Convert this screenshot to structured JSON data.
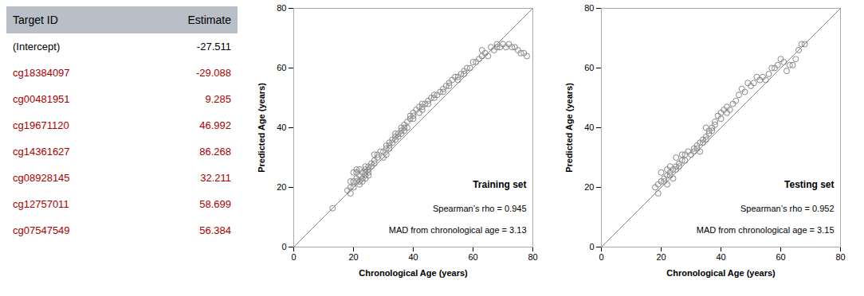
{
  "chart_data": [
    {
      "type": "table",
      "headers": [
        "Target ID",
        "Estimate"
      ],
      "rows": [
        [
          "(Intercept)",
          "-27.511"
        ],
        [
          "cg18384097",
          "-29.088"
        ],
        [
          "cg00481951",
          "9.285"
        ],
        [
          "cg19671120",
          "46.992"
        ],
        [
          "cg14361627",
          "86.268"
        ],
        [
          "cg08928145",
          "32.211"
        ],
        [
          "cg12757011",
          "58.699"
        ],
        [
          "cg07547549",
          "56.384"
        ]
      ],
      "colors": [
        "#000000",
        "#aa0000",
        "#aa0000",
        "#aa0000",
        "#aa0000",
        "#aa0000",
        "#aa0000",
        "#aa0000"
      ]
    },
    {
      "type": "scatter",
      "title": "Training set",
      "annotations": [
        "Spearman’s rho = 0.945",
        "MAD from chronological age = 3.13"
      ],
      "x": [
        13,
        18,
        19,
        19,
        19,
        20,
        20,
        20,
        21,
        21,
        21,
        21,
        22,
        22,
        22,
        22,
        23,
        23,
        23,
        24,
        24,
        24,
        24,
        24,
        25,
        25,
        25,
        25,
        26,
        26,
        27,
        27,
        27,
        28,
        28,
        29,
        30,
        30,
        31,
        31,
        31,
        32,
        32,
        32,
        33,
        33,
        34,
        34,
        34,
        35,
        35,
        36,
        36,
        36,
        37,
        37,
        37,
        38,
        38,
        39,
        39,
        40,
        40,
        40,
        41,
        42,
        42,
        43,
        43,
        43,
        44,
        45,
        45,
        46,
        47,
        47,
        48,
        49,
        50,
        50,
        51,
        52,
        52,
        53,
        54,
        55,
        55,
        56,
        57,
        57,
        58,
        59,
        60,
        61,
        62,
        63,
        63,
        64,
        65,
        66,
        67,
        68,
        68,
        69,
        70,
        71,
        72,
        73,
        74,
        75,
        76,
        77,
        78
      ],
      "values": [
        13,
        19,
        20,
        22,
        18,
        22,
        20,
        25,
        23,
        25,
        22,
        26,
        24,
        22,
        26,
        21,
        25,
        23,
        22,
        26,
        25,
        24,
        27,
        23,
        27,
        25,
        26,
        24,
        28,
        27,
        29,
        31,
        28,
        31,
        30,
        32,
        32,
        30,
        33,
        31,
        34,
        33,
        35,
        34,
        36,
        35,
        37,
        36,
        38,
        38,
        37,
        39,
        38,
        40,
        40,
        39,
        41,
        42,
        40,
        44,
        43,
        44,
        43,
        45,
        46,
        45,
        47,
        46,
        48,
        47,
        48,
        49,
        48,
        50,
        50,
        51,
        51,
        52,
        53,
        52,
        54,
        54,
        55,
        56,
        57,
        57,
        56,
        58,
        59,
        58,
        60,
        60,
        62,
        62,
        63,
        64,
        66,
        65,
        64,
        67,
        66,
        67,
        68,
        67,
        68,
        67,
        68,
        67,
        67,
        66,
        65,
        65,
        64
      ],
      "color": "#888888",
      "marker": "circle",
      "reference_line": {
        "x": [
          0,
          80
        ],
        "y": [
          0,
          80
        ],
        "color": "#888888"
      },
      "xlim": [
        0,
        80
      ],
      "ylim": [
        0,
        80
      ],
      "xticks": [
        0,
        20,
        40,
        60,
        80
      ],
      "yticks": [
        0,
        20,
        40,
        60,
        80
      ],
      "xlabel": "Chronological Age (years)",
      "ylabel": "Predicted Age (years)",
      "grid": false
    },
    {
      "type": "scatter",
      "title": "Testing set",
      "annotations": [
        "Spearman’s rho = 0.952",
        "MAD from chronological age = 3.15"
      ],
      "x": [
        18,
        19,
        19,
        20,
        20,
        21,
        21,
        22,
        22,
        22,
        23,
        23,
        23,
        24,
        24,
        25,
        25,
        25,
        26,
        26,
        27,
        27,
        28,
        28,
        29,
        30,
        31,
        31,
        32,
        32,
        33,
        33,
        34,
        34,
        35,
        35,
        35,
        36,
        36,
        37,
        37,
        38,
        38,
        39,
        40,
        40,
        41,
        42,
        42,
        43,
        44,
        45,
        46,
        47,
        48,
        49,
        50,
        51,
        52,
        53,
        54,
        55,
        56,
        57,
        58,
        59,
        60,
        61,
        62,
        63,
        64,
        65,
        66,
        67,
        68
      ],
      "values": [
        20,
        18,
        21,
        22,
        25,
        23,
        22,
        24,
        26,
        21,
        25,
        24,
        27,
        26,
        23,
        27,
        26,
        30,
        28,
        27,
        29,
        31,
        31,
        29,
        32,
        31,
        33,
        32,
        34,
        33,
        35,
        32,
        36,
        35,
        37,
        40,
        36,
        39,
        38,
        40,
        39,
        42,
        41,
        44,
        45,
        43,
        46,
        45,
        47,
        46,
        48,
        49,
        51,
        53,
        52,
        55,
        54,
        55,
        57,
        56,
        57,
        56,
        58,
        60,
        60,
        61,
        63,
        62,
        59,
        61,
        61,
        63,
        66,
        68,
        68
      ],
      "color": "#888888",
      "marker": "circle",
      "reference_line": {
        "x": [
          0,
          80
        ],
        "y": [
          0,
          80
        ],
        "color": "#888888"
      },
      "xlim": [
        0,
        80
      ],
      "ylim": [
        0,
        80
      ],
      "xticks": [
        0,
        20,
        40,
        60,
        80
      ],
      "yticks": [
        0,
        20,
        40,
        60,
        80
      ],
      "xlabel": "Chronological Age (years)",
      "ylabel": "Predicted Age (years)",
      "grid": false
    }
  ]
}
